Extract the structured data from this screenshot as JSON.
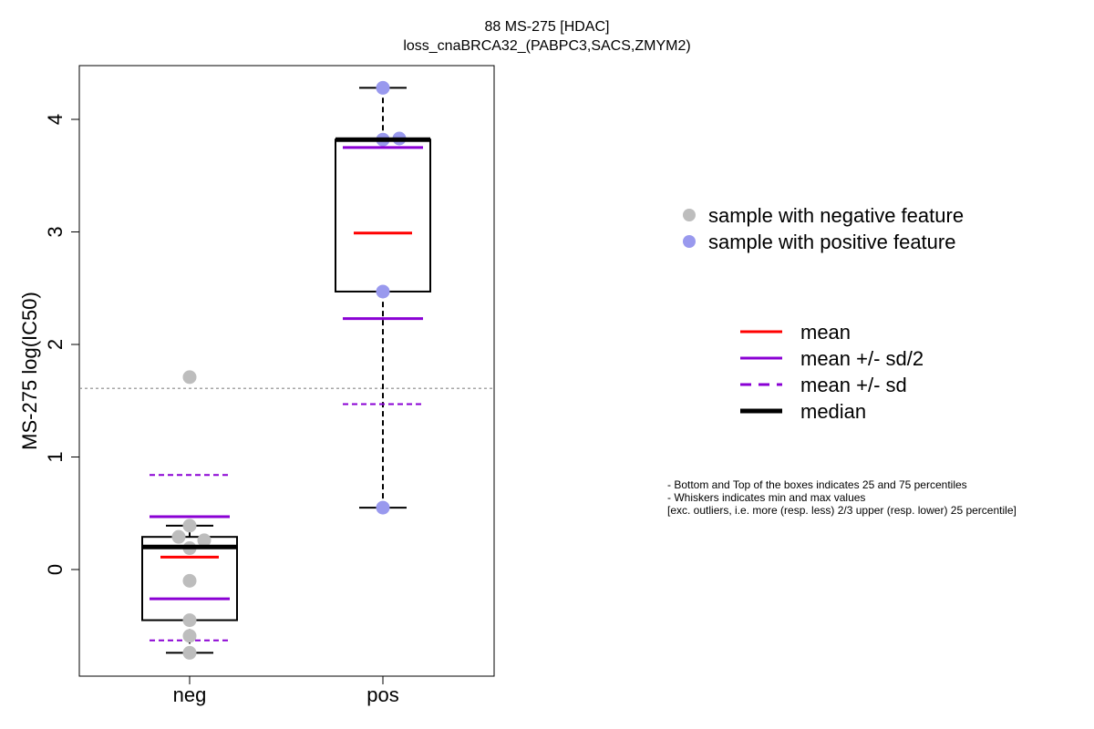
{
  "chart_data": {
    "type": "box",
    "title": "88 MS-275 [HDAC]",
    "subtitle": "loss_cnaBRCA32_(PABPC3,SACS,ZMYM2)",
    "ylabel": "MS-275 log(IC50)",
    "xlabel": "",
    "ylim": [
      -0.95,
      4.45
    ],
    "yticks": [
      0,
      1,
      2,
      3,
      4
    ],
    "threshold": 1.61,
    "groups": [
      {
        "name": "neg",
        "color": "#bdbdbd",
        "points": [
          1.71,
          0.39,
          0.29,
          0.26,
          0.19,
          -0.1,
          -0.45,
          -0.59,
          -0.74
        ],
        "box": {
          "q1": -0.45,
          "median": 0.2,
          "q3": 0.29,
          "whisker_low": -0.74,
          "whisker_high": 0.39
        },
        "mean": 0.11,
        "mean_minus_half_sd": -0.26,
        "mean_plus_half_sd": 0.47,
        "mean_minus_sd": -0.63,
        "mean_plus_sd": 0.84
      },
      {
        "name": "pos",
        "color": "#9999ee",
        "points": [
          4.28,
          3.82,
          3.83,
          2.47,
          0.55
        ],
        "box": {
          "q1": 2.47,
          "median": 3.82,
          "q3": 3.82,
          "whisker_low": 0.55,
          "whisker_high": 4.28
        },
        "mean": 2.99,
        "mean_minus_half_sd": 2.23,
        "mean_plus_half_sd": 3.75,
        "mean_minus_sd": 1.47,
        "mean_plus_sd": null
      }
    ],
    "legend_points": [
      {
        "label": "sample with negative feature",
        "color": "#bdbdbd"
      },
      {
        "label": "sample with positive feature",
        "color": "#9999ee"
      }
    ],
    "legend_lines": [
      {
        "label": "mean",
        "color": "#ff0000",
        "style": "solid",
        "weight": "normal"
      },
      {
        "label": "mean +/- sd/2",
        "color": "#8a00d4",
        "style": "solid",
        "weight": "normal"
      },
      {
        "label": "mean +/- sd",
        "color": "#8a00d4",
        "style": "dashed",
        "weight": "normal"
      },
      {
        "label": "median",
        "color": "#000000",
        "style": "solid",
        "weight": "bold"
      }
    ],
    "notes": [
      "- Bottom and Top of the boxes indicates 25 and 75 percentiles",
      "- Whiskers indicates min and max values",
      "[exc. outliers, i.e. more (resp. less) 2/3 upper (resp. lower) 25 percentile]"
    ]
  }
}
